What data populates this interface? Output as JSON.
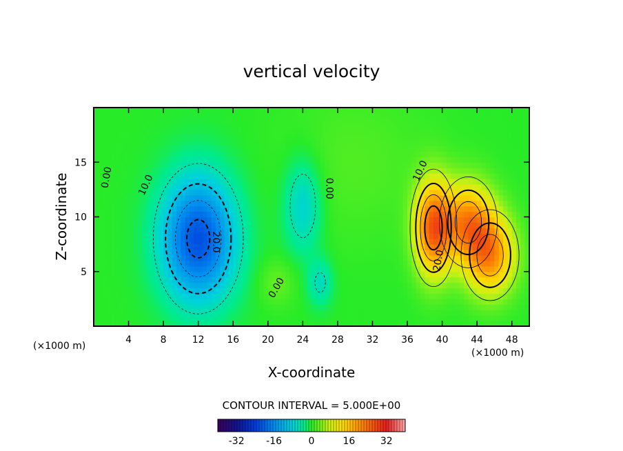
{
  "chart_data": {
    "type": "heatmap",
    "title": "vertical velocity",
    "xlabel": "X-coordinate",
    "ylabel": "Z-coordinate",
    "x_unit_left": "(×1000 m)",
    "x_unit_right": "(×1000 m)",
    "xlim": [
      0,
      50
    ],
    "ylim": [
      0,
      20
    ],
    "x_ticks": [
      "4",
      "8",
      "12",
      "16",
      "20",
      "24",
      "28",
      "32",
      "36",
      "40",
      "44",
      "48"
    ],
    "x_tick_values": [
      4,
      8,
      12,
      16,
      20,
      24,
      28,
      32,
      36,
      40,
      44,
      48
    ],
    "y_ticks": [
      "5",
      "10",
      "15"
    ],
    "y_tick_values": [
      5,
      10,
      15
    ],
    "contour_interval_text": "CONTOUR INTERVAL = 5.000E+00",
    "contour_labels": [
      {
        "text": "0.00",
        "x": 1.5,
        "y": 13.6,
        "rotation": -80
      },
      {
        "text": "10.0",
        "x": 6.0,
        "y": 12.9,
        "rotation": -65
      },
      {
        "text": "20.0",
        "x": 14.0,
        "y": 7.7,
        "rotation": 90
      },
      {
        "text": "0.00",
        "x": 27.0,
        "y": 12.6,
        "rotation": 90
      },
      {
        "text": "0.00",
        "x": 21.0,
        "y": 3.5,
        "rotation": -60
      },
      {
        "text": "10.0",
        "x": 37.5,
        "y": 14.2,
        "rotation": -65
      },
      {
        "text": "20.0",
        "x": 39.6,
        "y": 6.0,
        "rotation": -80
      }
    ],
    "cells": [
      {
        "x": 12,
        "y": 8,
        "value": -22,
        "sx": 3,
        "sy": 4
      },
      {
        "x": 24,
        "y": 11,
        "value": -8,
        "sx": 1.5,
        "sy": 3
      },
      {
        "x": 26,
        "y": 4,
        "value": -6,
        "sx": 1,
        "sy": 1.5
      },
      {
        "x": 39,
        "y": 9,
        "value": 25,
        "sx": 1.5,
        "sy": 3
      },
      {
        "x": 43,
        "y": 9.5,
        "value": 20,
        "sx": 2,
        "sy": 2.5
      },
      {
        "x": 45.5,
        "y": 6.5,
        "value": 20,
        "sx": 2,
        "sy": 2.5
      },
      {
        "x": 21,
        "y": 4,
        "value": 3,
        "sx": 1.5,
        "sy": 1.5
      }
    ],
    "colorbar": {
      "range": [
        -40,
        40
      ],
      "tick_labels": [
        "-32",
        "-16",
        "0",
        "16",
        "32"
      ],
      "tick_values": [
        -32,
        -16,
        0,
        16,
        32
      ]
    }
  }
}
